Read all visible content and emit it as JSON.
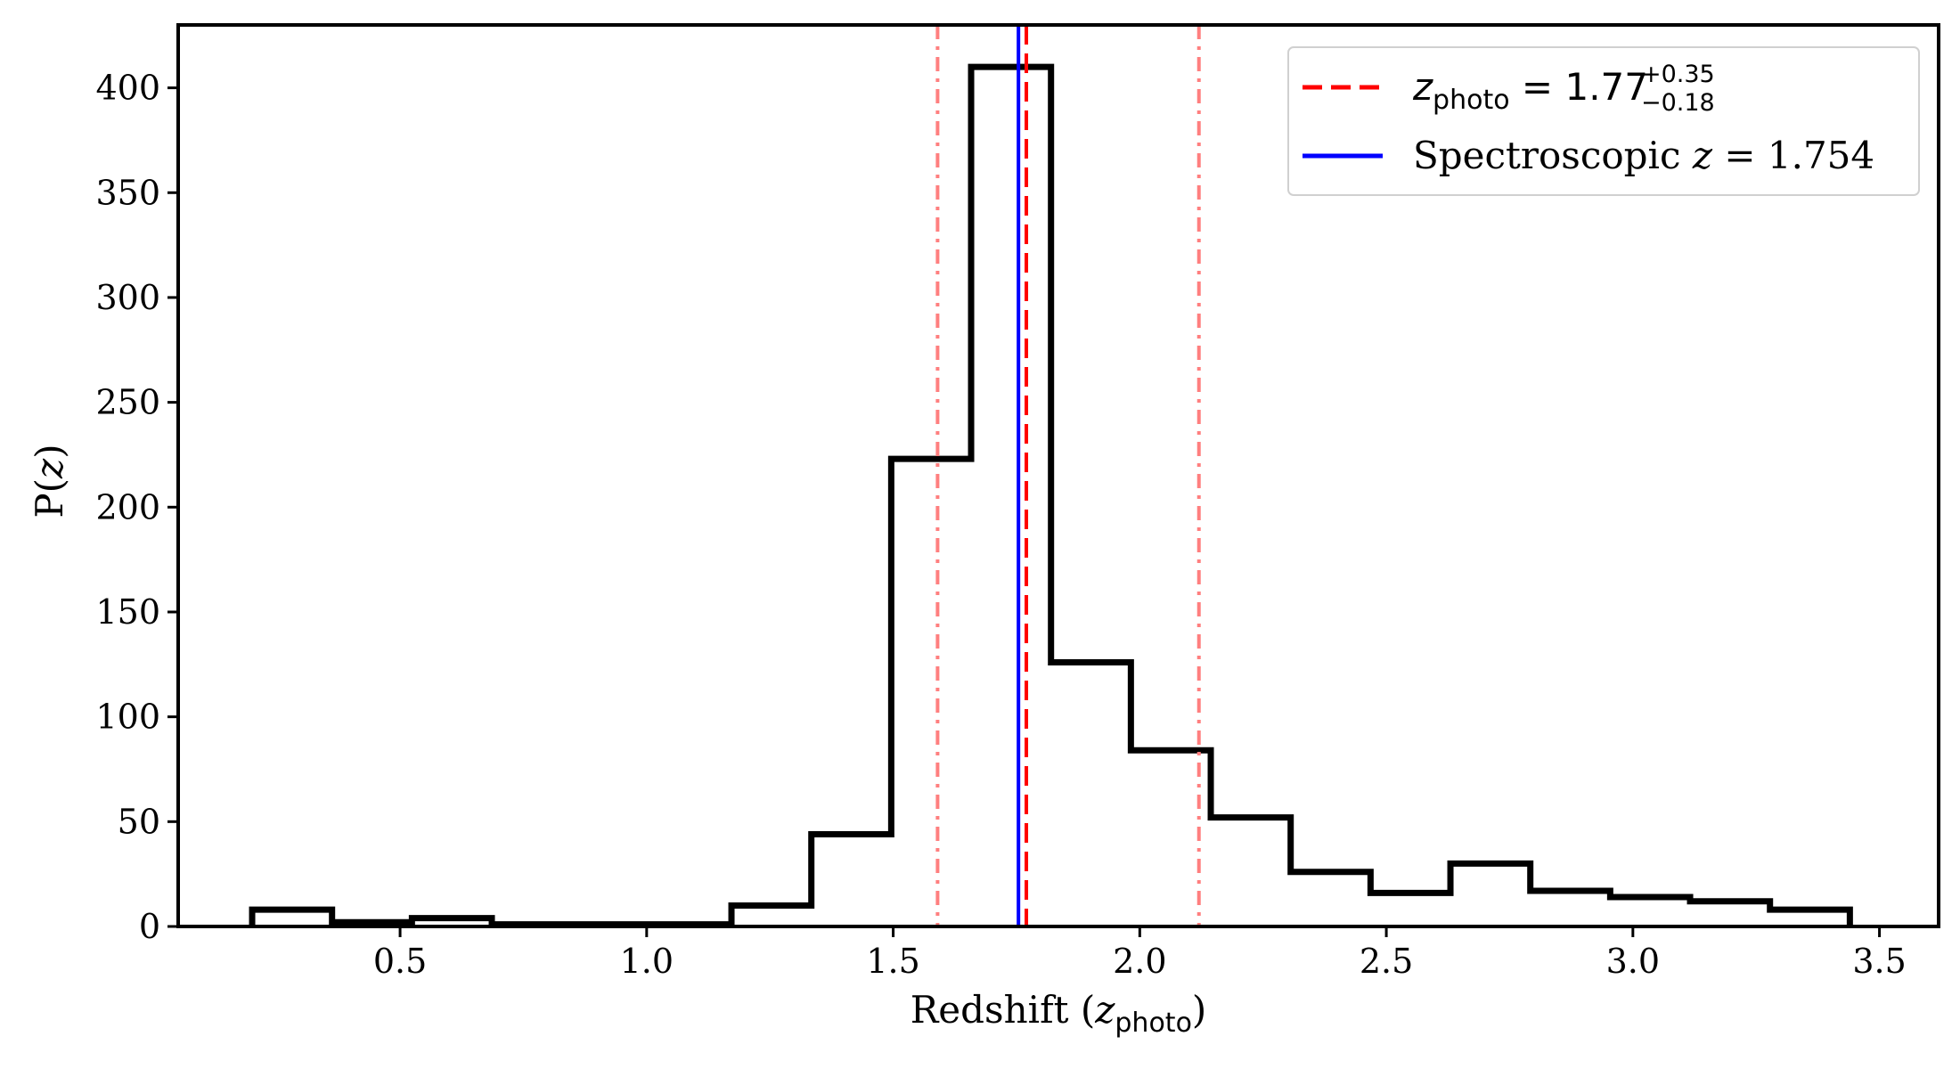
{
  "chart_data": {
    "type": "histogram",
    "title": "",
    "xlabel": {
      "prefix": "Redshift (",
      "var": "z",
      "sub": "photo",
      "suffix": ")"
    },
    "ylabel": {
      "prefix": "P(",
      "var": "z",
      "suffix": ")"
    },
    "xlim": [
      0.05,
      3.62
    ],
    "ylim": [
      0,
      430
    ],
    "xticks": [
      0.5,
      1.0,
      1.5,
      2.0,
      2.5,
      3.0,
      3.5
    ],
    "xtick_labels": [
      "0.5",
      "1.0",
      "1.5",
      "2.0",
      "2.5",
      "3.0",
      "3.5"
    ],
    "yticks": [
      0,
      50,
      100,
      150,
      200,
      250,
      300,
      350,
      400
    ],
    "ytick_labels": [
      "0",
      "50",
      "100",
      "150",
      "200",
      "250",
      "300",
      "350",
      "400"
    ],
    "bin_edges": [
      0.2,
      0.362,
      0.524,
      0.686,
      0.848,
      1.01,
      1.172,
      1.334,
      1.496,
      1.658,
      1.82,
      1.982,
      2.144,
      2.306,
      2.468,
      2.63,
      2.792,
      2.954,
      3.116,
      3.278,
      3.44
    ],
    "counts": [
      8,
      2,
      4,
      1,
      1,
      1,
      10,
      44,
      223,
      410,
      126,
      84,
      52,
      26,
      16,
      30,
      17,
      14,
      12,
      8
    ],
    "vlines": [
      {
        "name": "zphoto-median",
        "x": 1.77,
        "color": "#ff0000",
        "style": "dashed",
        "opacity": 1
      },
      {
        "name": "zphoto-lower",
        "x": 1.59,
        "color": "#ff7f7f",
        "style": "dashdot",
        "opacity": 1
      },
      {
        "name": "zphoto-upper",
        "x": 2.12,
        "color": "#ff7f7f",
        "style": "dashdot",
        "opacity": 1
      },
      {
        "name": "zspec",
        "x": 1.754,
        "color": "#0000ff",
        "style": "solid",
        "opacity": 1
      }
    ],
    "legend": {
      "placement": "top-right",
      "entries": [
        {
          "name": "zphoto",
          "color": "#ff0000",
          "style": "dashed",
          "var": "z",
          "sub": "photo",
          "eq": " = 1.77",
          "sup": "+0.35",
          "subscript": "−0.18"
        },
        {
          "name": "zspec",
          "color": "#0000ff",
          "style": "solid",
          "text": "Spectroscopic ",
          "var": "z",
          "eq": " = 1.754"
        }
      ]
    }
  }
}
